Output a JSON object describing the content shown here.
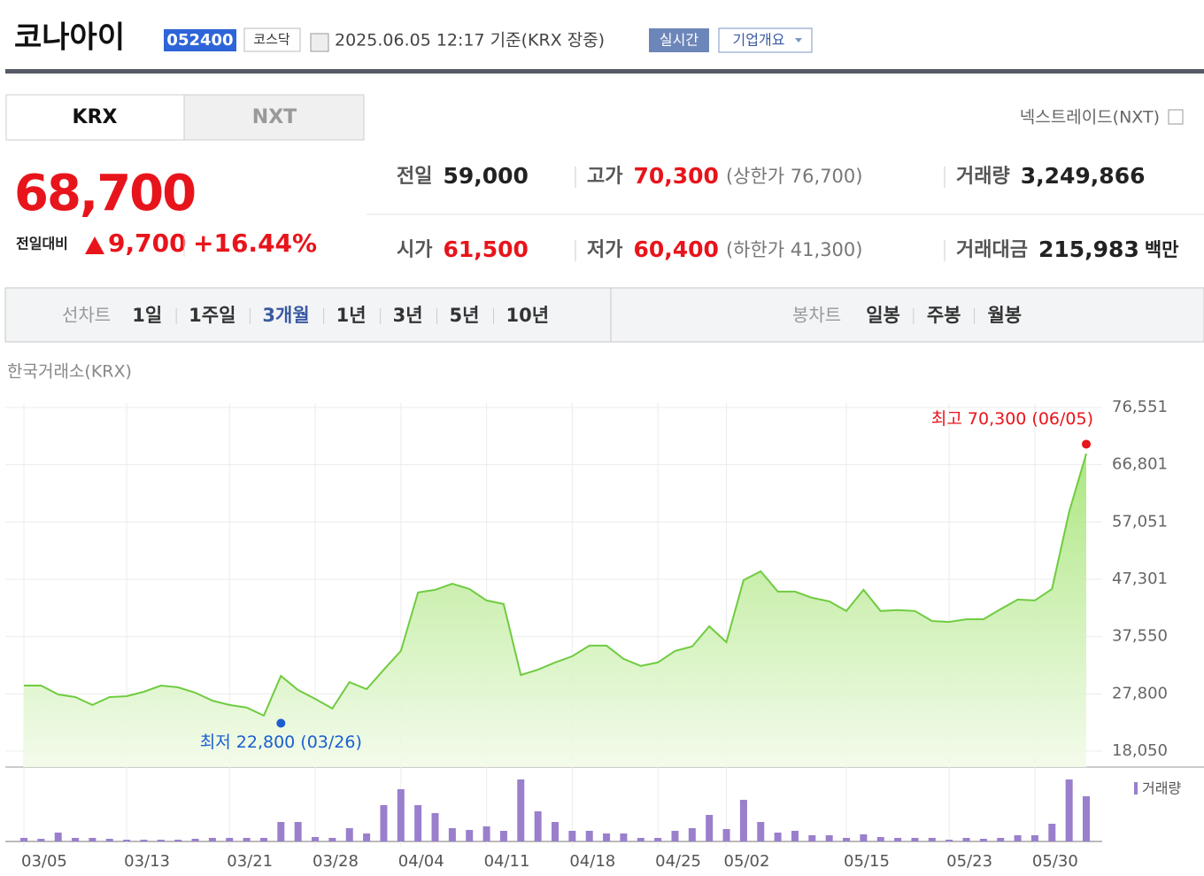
{
  "header": {
    "name": "코나아이",
    "code": "052400",
    "market": "코스닥",
    "timestamp": "2025.06.05 12:17 기준(KRX 장중)",
    "realtime": "실시간",
    "company_info": "기업개요"
  },
  "tabs": [
    "KRX",
    "NXT"
  ],
  "nxt_link": "넥스트레이드(NXT)",
  "quote": {
    "price": "68,700",
    "change_label": "전일대비",
    "change": "9,700",
    "change_pct": "+16.44%",
    "items": [
      {
        "label": "전일",
        "value": "59,000"
      },
      {
        "label": "고가",
        "value": "70,300",
        "note": "(상한가 76,700)"
      },
      {
        "label": "거래량",
        "value": "3,249,866"
      },
      {
        "label": "시가",
        "value": "61,500"
      },
      {
        "label": "저가",
        "value": "60,400",
        "note": "(하한가 41,300)"
      },
      {
        "label": "거래대금",
        "value": "215,983",
        "note": "백만"
      }
    ]
  },
  "period_bar": {
    "line_label": "선차트",
    "line_periods": [
      "1일",
      "1주일",
      "3개월",
      "1년",
      "3년",
      "5년",
      "10년"
    ],
    "active": 2,
    "candle_label": "봉차트",
    "candle_periods": [
      "일봉",
      "주봉",
      "월봉"
    ]
  },
  "chart_data": {
    "type": "line",
    "source": "한국거래소(KRX)",
    "color": "#6fcc40",
    "categories": [
      "03/05",
      null,
      null,
      null,
      null,
      null,
      "03/13",
      null,
      null,
      null,
      null,
      null,
      "03/21",
      null,
      null,
      null,
      null,
      "03/28",
      null,
      null,
      null,
      null,
      "04/04",
      null,
      null,
      null,
      null,
      "04/11",
      null,
      null,
      null,
      null,
      "04/18",
      null,
      null,
      null,
      null,
      "04/25",
      null,
      null,
      null,
      "05/02",
      null,
      null,
      null,
      null,
      null,
      null,
      "05/15",
      null,
      null,
      null,
      null,
      null,
      "05/23",
      null,
      null,
      null,
      null,
      "05/30",
      null,
      null,
      null
    ],
    "values": [
      29200,
      29200,
      27700,
      27250,
      25900,
      27250,
      27400,
      28150,
      29200,
      28900,
      28000,
      26650,
      25900,
      25450,
      24100,
      30850,
      28450,
      26950,
      25300,
      29800,
      28600,
      31900,
      35100,
      45050,
      45500,
      46550,
      45650,
      43700,
      43100,
      31000,
      31900,
      33150,
      34200,
      36000,
      36000,
      33750,
      32550,
      33150,
      35100,
      35850,
      39300,
      36600,
      47150,
      48650,
      45200,
      45200,
      44150,
      43550,
      41900,
      45500,
      41900,
      42050,
      41900,
      40200,
      40050,
      40500,
      40500,
      42200,
      43850,
      43700,
      45650,
      58750,
      68700
    ],
    "ylim": [
      18050,
      76551
    ],
    "yticks": [
      {
        "value": 18050,
        "label": "18,050"
      },
      {
        "value": 27800,
        "label": "27,800"
      },
      {
        "value": 37550,
        "label": "37,550"
      },
      {
        "value": 47301,
        "label": "47,301"
      },
      {
        "value": 57051,
        "label": "57,051"
      },
      {
        "value": 66801,
        "label": "66,801"
      },
      {
        "value": 76551,
        "label": "76,551"
      }
    ],
    "grid": true,
    "annotations": [
      {
        "label": "최고 70,300 (06/05)",
        "value": 70300,
        "point": 62,
        "color": "#e8141b"
      },
      {
        "label": "최저 22,800 (03/26)",
        "value": 22800,
        "point": 15,
        "color": "#1a5fd1"
      }
    ],
    "volume": {
      "name": "거래량",
      "color": "#9a7fcc",
      "values": [
        255000,
        191000,
        637000,
        255000,
        255000,
        191000,
        127000,
        127000,
        127000,
        127000,
        191000,
        255000,
        255000,
        255000,
        255000,
        1401000,
        1401000,
        319000,
        255000,
        956000,
        573000,
        2612000,
        3758000,
        2612000,
        2038000,
        956000,
        828000,
        1083000,
        764000,
        4459000,
        2166000,
        1401000,
        764000,
        764000,
        573000,
        573000,
        255000,
        255000,
        764000,
        956000,
        1911000,
        892000,
        2994000,
        1401000,
        637000,
        764000,
        446000,
        446000,
        255000,
        510000,
        319000,
        255000,
        255000,
        255000,
        127000,
        255000,
        191000,
        255000,
        446000,
        446000,
        1274000,
        4459000,
        3249866
      ]
    }
  }
}
